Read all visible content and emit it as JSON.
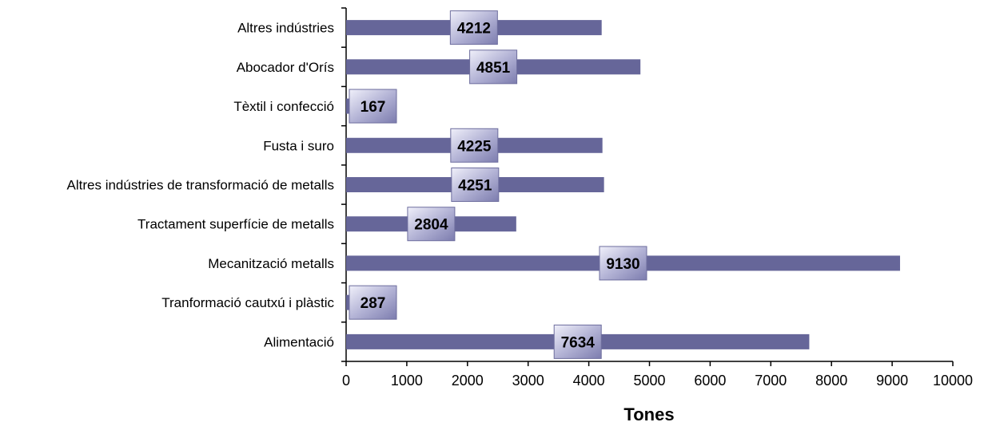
{
  "chart_data": {
    "type": "bar",
    "orientation": "horizontal",
    "title": "",
    "xlabel": "Tones",
    "ylabel": "",
    "xlim": [
      0,
      10000
    ],
    "xticks": [
      0,
      1000,
      2000,
      3000,
      4000,
      5000,
      6000,
      7000,
      8000,
      9000,
      10000
    ],
    "grid": false,
    "bar_color": "#666699",
    "label_box_color": "#9a9ac2",
    "categories": [
      "Altres indústries",
      "Abocador d'Orís",
      "Tèxtil i confecció",
      "Fusta i suro",
      "Altres indústries de transformació de metalls",
      "Tractament superfície de metalls",
      "Mecanització metalls",
      "Tranformació cautxú i plàstic",
      "Alimentació"
    ],
    "values": [
      4212,
      4851,
      167,
      4225,
      4251,
      2804,
      9130,
      287,
      7634
    ]
  }
}
